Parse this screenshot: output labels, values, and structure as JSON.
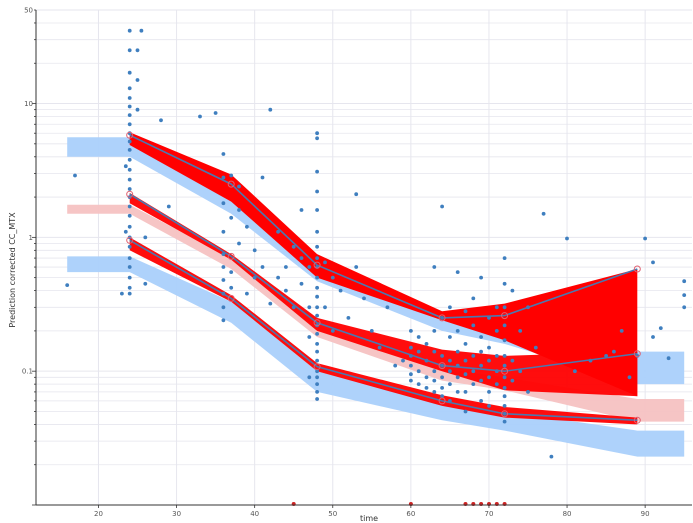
{
  "chart_data": {
    "type": "scatter",
    "title": "",
    "xlabel": "time",
    "ylabel": "Prediction corrected CC_MTX",
    "xlim": [
      12,
      96
    ],
    "ylim": [
      0.01,
      50
    ],
    "y_scale": "log",
    "x_ticks": [
      20,
      30,
      40,
      50,
      60,
      70,
      80,
      90
    ],
    "y_ticks": [
      {
        "value": 0.1,
        "label": "0.1"
      },
      {
        "value": 1,
        "label": "1"
      },
      {
        "value": 10,
        "label": "10"
      },
      {
        "value": 50,
        "label": "50"
      }
    ],
    "grid": true,
    "legend": "none",
    "colors": {
      "observed_points": "#3f7fbf",
      "observed_percentile_lines": "#4a78b0",
      "observed_percentile_circles": "#e06070",
      "simulated_outer_bands": "#aad0fb",
      "simulated_median_band": "#f6c2c2",
      "observed_ci_fill": "#ff0000",
      "gridline": "#e6e6ee",
      "blq_marker": "#cc2222"
    },
    "bins_x": [
      24,
      37,
      48,
      64,
      72,
      89
    ],
    "observed_percentile_lines": [
      {
        "name": "p95",
        "points": [
          [
            24,
            5.8
          ],
          [
            37,
            2.5
          ],
          [
            48,
            0.62
          ],
          [
            64,
            0.25
          ],
          [
            72,
            0.26
          ],
          [
            89,
            0.58
          ]
        ]
      },
      {
        "name": "p50",
        "points": [
          [
            24,
            2.1
          ],
          [
            37,
            0.72
          ],
          [
            48,
            0.23
          ],
          [
            64,
            0.11
          ],
          [
            72,
            0.1
          ],
          [
            89,
            0.135
          ]
        ]
      },
      {
        "name": "p05",
        "points": [
          [
            24,
            0.95
          ],
          [
            37,
            0.35
          ],
          [
            48,
            0.108
          ],
          [
            64,
            0.06
          ],
          [
            72,
            0.048
          ],
          [
            89,
            0.043
          ]
        ]
      }
    ],
    "observed_ci_bands": [
      {
        "name": "p95",
        "lower": [
          4.9,
          1.85,
          0.5,
          0.24,
          0.17,
          0.065
        ],
        "upper": [
          6.1,
          2.95,
          0.75,
          0.28,
          0.32,
          0.58
        ]
      },
      {
        "name": "p50",
        "lower": [
          1.8,
          0.68,
          0.2,
          0.1,
          0.072,
          0.065
        ],
        "upper": [
          2.15,
          0.75,
          0.25,
          0.145,
          0.13,
          0.14
        ]
      },
      {
        "name": "p05",
        "lower": [
          0.8,
          0.33,
          0.1,
          0.055,
          0.045,
          0.04
        ],
        "upper": [
          1.0,
          0.37,
          0.115,
          0.066,
          0.054,
          0.045
        ]
      }
    ],
    "simulated_bands": [
      {
        "name": "p95",
        "x": [
          16,
          24,
          37,
          48,
          64,
          72,
          89,
          95
        ],
        "lower": [
          4.0,
          4.0,
          1.5,
          0.47,
          0.2,
          0.16,
          0.08,
          0.08
        ],
        "upper": [
          5.6,
          5.6,
          2.5,
          0.62,
          0.26,
          0.22,
          0.14,
          0.14
        ]
      },
      {
        "name": "p50",
        "x": [
          16,
          24,
          37,
          48,
          64,
          72,
          89,
          95
        ],
        "lower": [
          1.5,
          1.5,
          0.58,
          0.18,
          0.085,
          0.072,
          0.042,
          0.042
        ],
        "upper": [
          1.75,
          1.75,
          0.7,
          0.22,
          0.105,
          0.09,
          0.062,
          0.062
        ]
      },
      {
        "name": "p05",
        "x": [
          16,
          24,
          37,
          48,
          64,
          72,
          89,
          95
        ],
        "lower": [
          0.55,
          0.55,
          0.23,
          0.07,
          0.043,
          0.036,
          0.023,
          0.023
        ],
        "upper": [
          0.72,
          0.72,
          0.33,
          0.1,
          0.057,
          0.05,
          0.036,
          0.036
        ]
      }
    ],
    "scatter_points": [
      [
        16,
        0.44
      ],
      [
        17,
        2.9
      ],
      [
        24,
        35
      ],
      [
        24,
        25
      ],
      [
        24,
        17
      ],
      [
        24,
        13
      ],
      [
        24,
        11
      ],
      [
        24,
        9.5
      ],
      [
        24,
        8.2
      ],
      [
        24,
        7.0
      ],
      [
        24,
        6.0
      ],
      [
        24,
        5.2
      ],
      [
        24,
        4.5
      ],
      [
        24,
        3.8
      ],
      [
        24,
        3.2
      ],
      [
        24,
        2.7
      ],
      [
        24,
        2.3
      ],
      [
        24,
        2.0
      ],
      [
        24,
        1.7
      ],
      [
        24,
        1.45
      ],
      [
        24,
        1.2
      ],
      [
        24,
        1.0
      ],
      [
        24,
        0.85
      ],
      [
        24,
        0.7
      ],
      [
        24,
        0.6
      ],
      [
        24,
        0.5
      ],
      [
        24,
        0.42
      ],
      [
        24,
        0.38
      ],
      [
        23.5,
        3.4
      ],
      [
        23.5,
        1.1
      ],
      [
        23,
        0.38
      ],
      [
        25,
        25
      ],
      [
        25,
        15
      ],
      [
        25,
        9
      ],
      [
        25.5,
        35
      ],
      [
        26,
        1.0
      ],
      [
        26,
        0.45
      ],
      [
        28,
        7.5
      ],
      [
        29,
        1.7
      ],
      [
        33,
        8.0
      ],
      [
        35,
        8.5
      ],
      [
        36,
        4.2
      ],
      [
        36,
        2.8
      ],
      [
        36,
        1.8
      ],
      [
        36,
        1.1
      ],
      [
        36,
        0.75
      ],
      [
        36,
        0.6
      ],
      [
        36,
        0.48
      ],
      [
        36,
        0.38
      ],
      [
        36,
        0.3
      ],
      [
        36,
        0.24
      ],
      [
        37,
        2.9
      ],
      [
        37,
        1.4
      ],
      [
        37,
        0.55
      ],
      [
        37,
        0.42
      ],
      [
        38,
        2.4
      ],
      [
        38,
        1.6
      ],
      [
        38,
        0.9
      ],
      [
        39,
        1.2
      ],
      [
        39,
        0.38
      ],
      [
        40,
        0.8
      ],
      [
        40,
        0.5
      ],
      [
        41,
        2.8
      ],
      [
        41,
        0.6
      ],
      [
        42,
        9.0
      ],
      [
        42,
        0.32
      ],
      [
        43,
        1.1
      ],
      [
        43,
        0.5
      ],
      [
        44,
        0.6
      ],
      [
        44,
        0.4
      ],
      [
        45,
        0.85
      ],
      [
        45,
        0.3
      ],
      [
        46,
        1.6
      ],
      [
        46,
        0.7
      ],
      [
        46,
        0.45
      ],
      [
        47,
        0.3
      ],
      [
        47,
        0.6
      ],
      [
        47,
        0.18
      ],
      [
        47,
        0.09
      ],
      [
        48,
        6.0
      ],
      [
        48,
        5.5
      ],
      [
        48,
        3.1
      ],
      [
        48,
        2.2
      ],
      [
        48,
        1.6
      ],
      [
        48,
        1.1
      ],
      [
        48,
        0.85
      ],
      [
        48,
        0.7
      ],
      [
        48,
        0.6
      ],
      [
        48,
        0.5
      ],
      [
        48,
        0.42
      ],
      [
        48,
        0.36
      ],
      [
        48,
        0.3
      ],
      [
        48,
        0.26
      ],
      [
        48,
        0.22
      ],
      [
        48,
        0.19
      ],
      [
        48,
        0.16
      ],
      [
        48,
        0.14
      ],
      [
        48,
        0.12
      ],
      [
        48,
        0.1
      ],
      [
        48,
        0.09
      ],
      [
        48,
        0.08
      ],
      [
        48,
        0.07
      ],
      [
        48,
        0.062
      ],
      [
        49,
        0.65
      ],
      [
        49,
        0.3
      ],
      [
        50,
        0.5
      ],
      [
        50,
        0.2
      ],
      [
        51,
        0.4
      ],
      [
        52,
        0.25
      ],
      [
        53,
        2.1
      ],
      [
        53,
        0.6
      ],
      [
        54,
        0.35
      ],
      [
        55,
        0.2
      ],
      [
        56,
        0.15
      ],
      [
        57,
        0.3
      ],
      [
        58,
        0.11
      ],
      [
        59,
        0.12
      ],
      [
        60,
        0.2
      ],
      [
        60,
        0.15
      ],
      [
        60,
        0.13
      ],
      [
        60,
        0.11
      ],
      [
        60,
        0.095
      ],
      [
        60,
        0.085
      ],
      [
        61,
        0.18
      ],
      [
        61,
        0.14
      ],
      [
        61,
        0.1
      ],
      [
        61,
        0.08
      ],
      [
        62,
        0.16
      ],
      [
        62,
        0.12
      ],
      [
        62,
        0.09
      ],
      [
        62,
        0.075
      ],
      [
        63,
        0.6
      ],
      [
        63,
        0.2
      ],
      [
        63,
        0.14
      ],
      [
        63,
        0.1
      ],
      [
        63,
        0.085
      ],
      [
        63,
        0.07
      ],
      [
        64,
        1.7
      ],
      [
        64,
        0.25
      ],
      [
        64,
        0.13
      ],
      [
        64,
        0.11
      ],
      [
        64,
        0.09
      ],
      [
        64,
        0.075
      ],
      [
        64,
        0.065
      ],
      [
        65,
        0.3
      ],
      [
        65,
        0.18
      ],
      [
        65,
        0.12
      ],
      [
        65,
        0.1
      ],
      [
        65,
        0.08
      ],
      [
        65,
        0.06
      ],
      [
        66,
        0.55
      ],
      [
        66,
        0.2
      ],
      [
        66,
        0.14
      ],
      [
        66,
        0.11
      ],
      [
        66,
        0.09
      ],
      [
        66,
        0.07
      ],
      [
        67,
        0.28
      ],
      [
        67,
        0.16
      ],
      [
        67,
        0.12
      ],
      [
        67,
        0.095
      ],
      [
        67,
        0.07
      ],
      [
        67,
        0.05
      ],
      [
        68,
        0.35
      ],
      [
        68,
        0.22
      ],
      [
        68,
        0.13
      ],
      [
        68,
        0.1
      ],
      [
        68,
        0.08
      ],
      [
        69,
        0.5
      ],
      [
        69,
        0.18
      ],
      [
        69,
        0.14
      ],
      [
        69,
        0.11
      ],
      [
        69,
        0.085
      ],
      [
        69,
        0.06
      ],
      [
        70,
        0.25
      ],
      [
        70,
        0.15
      ],
      [
        70,
        0.12
      ],
      [
        70,
        0.09
      ],
      [
        70,
        0.07
      ],
      [
        70,
        0.055
      ],
      [
        71,
        0.3
      ],
      [
        71,
        0.2
      ],
      [
        71,
        0.13
      ],
      [
        71,
        0.1
      ],
      [
        71,
        0.08
      ],
      [
        72,
        0.7
      ],
      [
        72,
        0.45
      ],
      [
        72,
        0.3
      ],
      [
        72,
        0.22
      ],
      [
        72,
        0.17
      ],
      [
        72,
        0.13
      ],
      [
        72,
        0.11
      ],
      [
        72,
        0.09
      ],
      [
        72,
        0.075
      ],
      [
        72,
        0.065
      ],
      [
        72,
        0.055
      ],
      [
        72,
        0.048
      ],
      [
        72,
        0.042
      ],
      [
        73,
        0.4
      ],
      [
        73,
        0.12
      ],
      [
        73,
        0.085
      ],
      [
        74,
        0.2
      ],
      [
        74,
        0.1
      ],
      [
        75,
        0.3
      ],
      [
        75,
        0.07
      ],
      [
        76,
        0.15
      ],
      [
        77,
        1.5
      ],
      [
        78,
        0.023
      ],
      [
        80,
        0.98
      ],
      [
        81,
        0.1
      ],
      [
        83,
        0.12
      ],
      [
        85,
        0.13
      ],
      [
        86,
        0.14
      ],
      [
        87,
        0.2
      ],
      [
        88,
        0.09
      ],
      [
        89,
        0.13
      ],
      [
        90,
        0.98
      ],
      [
        91,
        0.65
      ],
      [
        91,
        0.18
      ],
      [
        92,
        0.21
      ],
      [
        93,
        0.125
      ],
      [
        95,
        0.37
      ],
      [
        95,
        0.47
      ],
      [
        95,
        0.3
      ]
    ],
    "blq_markers_x": [
      45,
      60,
      67,
      68,
      69,
      70,
      71,
      72
    ]
  }
}
